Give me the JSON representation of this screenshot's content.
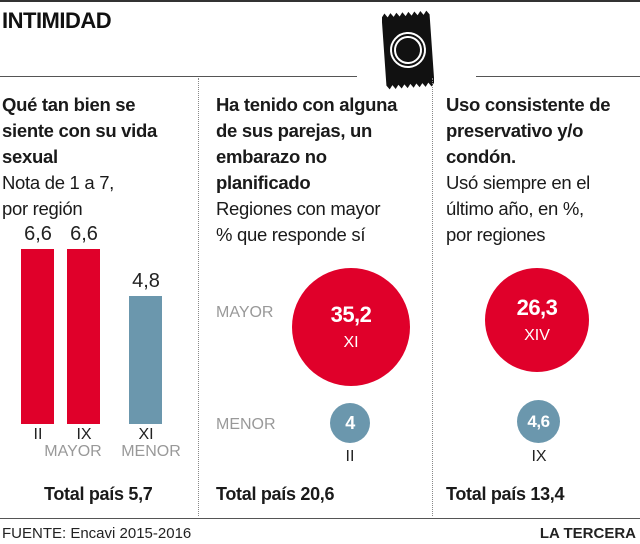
{
  "header": {
    "title": "INTIMIDAD",
    "icon": "condom-packet-icon"
  },
  "colors": {
    "red": "#e0002a",
    "blue_gray": "#6b97ad",
    "muted_label": "#999999"
  },
  "panels": [
    {
      "title_lines": [
        "Qué tan bien se",
        "siente con su vida",
        "sexual"
      ],
      "subtitle_lines": [
        "Nota de  1 a 7,",
        "por región"
      ],
      "total": "Total país 5,7"
    },
    {
      "title_lines": [
        "Ha tenido con alguna",
        "de sus parejas, un",
        "embarazo no",
        "planificado"
      ],
      "subtitle_lines": [
        "Regiones con mayor",
        "% que responde sí"
      ],
      "row_labels": [
        "MAYOR",
        "MENOR"
      ],
      "total": "Total país 20,6"
    },
    {
      "title_lines": [
        "Uso consistente de",
        "preservativo y/o",
        "condón."
      ],
      "subtitle_lines": [
        "Usó siempre en el",
        "último año, en %,",
        "por regiones"
      ],
      "total": "Total país 13,4"
    }
  ],
  "chart_data": [
    {
      "type": "bar",
      "title": "Qué tan bien se siente con su vida sexual",
      "subtitle": "Nota de 1 a 7, por región",
      "categories": [
        "II",
        "IX",
        "XI"
      ],
      "values": [
        6.6,
        6.6,
        4.8
      ],
      "value_labels": [
        "6,6",
        "6,6",
        "4,8"
      ],
      "groups": [
        {
          "label": "MAYOR",
          "categories": [
            "II",
            "IX"
          ],
          "color": "#e0002a"
        },
        {
          "label": "MENOR",
          "categories": [
            "XI"
          ],
          "color": "#6b97ad"
        }
      ],
      "ylim": [
        0,
        7
      ],
      "total": 5.7
    },
    {
      "type": "bubble",
      "title": "Ha tenido con alguna de sus parejas, un embarazo no planificado",
      "subtitle": "Regiones con mayor % que responde sí",
      "points": [
        {
          "group": "MAYOR",
          "region": "XI",
          "value": 35.2,
          "label": "35,2",
          "color": "#e0002a"
        },
        {
          "group": "MENOR",
          "region": "II",
          "value": 4,
          "label": "4",
          "color": "#6b97ad"
        }
      ],
      "total": 20.6
    },
    {
      "type": "bubble",
      "title": "Uso consistente de preservativo y/o condón.",
      "subtitle": "Usó siempre en el último año, en %, por regiones",
      "points": [
        {
          "group": "MAYOR",
          "region": "XIV",
          "value": 26.3,
          "label": "26,3",
          "color": "#e0002a"
        },
        {
          "group": "MENOR",
          "region": "IX",
          "value": 4.6,
          "label": "4,6",
          "color": "#6b97ad"
        }
      ],
      "total": 13.4
    }
  ],
  "footer": {
    "source": "FUENTE: Encavi 2015-2016",
    "brand": "LA TERCERA"
  }
}
